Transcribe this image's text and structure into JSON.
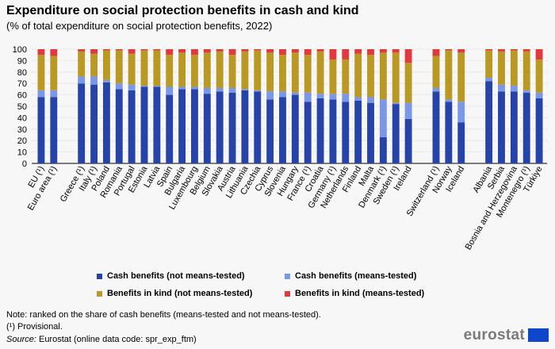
{
  "title": "Expenditure on social protection benefits in cash and kind",
  "subtitle": "(% of total expenditure on social protection benefits, 2022)",
  "chart_data": {
    "type": "bar",
    "stacked": true,
    "categories": [
      "EU (¹)",
      "Euro area (¹)",
      "Greece (¹)",
      "Italy (¹)",
      "Poland",
      "Romania",
      "Portugal",
      "Estonia",
      "Latvia",
      "Spain",
      "Bulgaria",
      "Luxembourg",
      "Belgium",
      "Slovakia",
      "Austria",
      "Lithuania",
      "Czechia",
      "Cyprus",
      "Slovenia",
      "Hungary",
      "France (¹)",
      "Croatia",
      "Germany (¹)",
      "Netherlands",
      "Finland",
      "Malta",
      "Denmark (¹)",
      "Sweden (¹)",
      "Ireland",
      "Switzerland (¹)",
      "Norway",
      "Iceland",
      "Albania",
      "Serbia",
      "Bosnia and Herzegovina",
      "Montenegro (¹)",
      "Türkiye"
    ],
    "groups": [
      2,
      27,
      3,
      5
    ],
    "series": [
      {
        "name": "Cash benefits (not means-tested)",
        "color": "#2644a7",
        "values": [
          58,
          58,
          70,
          69,
          71,
          65,
          64,
          67,
          67,
          60,
          65,
          65,
          61,
          63,
          62,
          64,
          63,
          56,
          58,
          60,
          54,
          57,
          56,
          54,
          55,
          53,
          23,
          52,
          39,
          63,
          54,
          36,
          72,
          63,
          63,
          62,
          57
        ]
      },
      {
        "name": "Cash benefits (means-tested)",
        "color": "#7a97e8",
        "values": [
          6,
          6,
          6,
          7,
          2,
          5,
          5,
          1,
          1,
          7,
          2,
          2,
          5,
          3,
          4,
          1,
          1,
          7,
          5,
          2,
          8,
          4,
          5,
          7,
          3,
          5,
          33,
          1,
          14,
          3,
          2,
          18,
          3,
          6,
          5,
          2,
          5
        ]
      },
      {
        "name": "Benefits in kind (not means-tested)",
        "color": "#b99824",
        "values": [
          31,
          30,
          22,
          20,
          26,
          29,
          27,
          31,
          31,
          28,
          30,
          28,
          31,
          32,
          29,
          33,
          35,
          34,
          32,
          35,
          33,
          37,
          30,
          30,
          38,
          37,
          41,
          44,
          35,
          28,
          43,
          43,
          24,
          29,
          31,
          34,
          29
        ]
      },
      {
        "name": "Benefits in kind (means-tested)",
        "color": "#e0393e",
        "values": [
          5,
          6,
          2,
          4,
          1,
          1,
          4,
          1,
          1,
          5,
          3,
          5,
          3,
          2,
          5,
          2,
          1,
          3,
          5,
          3,
          5,
          2,
          9,
          9,
          4,
          5,
          3,
          3,
          12,
          6,
          1,
          3,
          1,
          2,
          1,
          2,
          9
        ]
      }
    ],
    "ylim": [
      0,
      100
    ],
    "yticks": [
      0,
      10,
      20,
      30,
      40,
      50,
      60,
      70,
      80,
      90,
      100
    ],
    "grid": true,
    "legend_position": "bottom"
  },
  "legend": [
    {
      "label": "Cash benefits (not means-tested)",
      "color": "#2644a7"
    },
    {
      "label": "Cash benefits (means-tested)",
      "color": "#7a97e8"
    },
    {
      "label": "Benefits in kind (not means-tested)",
      "color": "#b99824"
    },
    {
      "label": "Benefits in kind (means-tested)",
      "color": "#e0393e"
    }
  ],
  "notes": {
    "line1": "Note: ranked on the share of cash benefits (means-tested and not means-tested).",
    "line2": "(¹) Provisional.",
    "source_label": "Source:",
    "source_text": " Eurostat (online data code: spr_exp_ftm)"
  },
  "logo": "eurostat"
}
